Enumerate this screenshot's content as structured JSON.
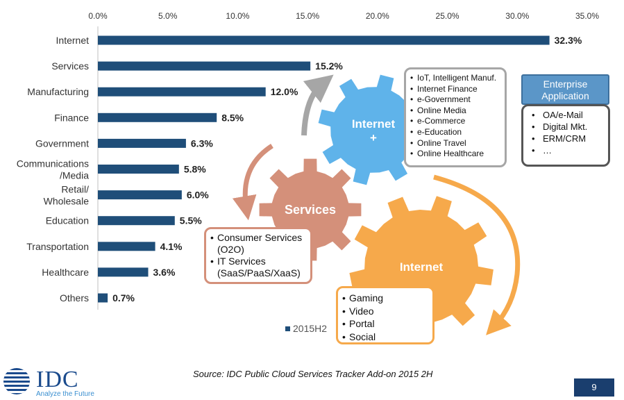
{
  "chart_data": {
    "type": "bar",
    "orientation": "horizontal",
    "categories": [
      "Internet",
      "Services",
      "Manufacturing",
      "Finance",
      "Government",
      "Communications /Media",
      "Retail/ Wholesale",
      "Education",
      "Transportation",
      "Healthcare",
      "Others"
    ],
    "series": [
      {
        "name": "2015H2",
        "values": [
          32.3,
          15.2,
          12.0,
          8.5,
          6.3,
          5.8,
          6.0,
          5.5,
          4.1,
          3.6,
          0.7
        ]
      }
    ],
    "value_labels": [
      "32.3%",
      "15.2%",
      "12.0%",
      "8.5%",
      "6.3%",
      "5.8%",
      "6.0%",
      "5.5%",
      "4.1%",
      "3.6%",
      "0.7%"
    ],
    "xticks": [
      "0.0%",
      "5.0%",
      "10.0%",
      "15.0%",
      "20.0%",
      "25.0%",
      "30.0%",
      "35.0%"
    ],
    "xlim": [
      0,
      35
    ],
    "axis_position": "top",
    "grid": false,
    "legend_position": "bottom-center",
    "bar_color": "#1f4e79"
  },
  "diagram": {
    "gears": [
      {
        "label": "Internet\n+",
        "color": "#5fb3ea"
      },
      {
        "label": "Services",
        "color": "#d4907a"
      },
      {
        "label": "Internet",
        "color": "#f6a94b"
      }
    ],
    "internet_plus_items": [
      "IoT, Intelligent Manuf.",
      "Internet Finance",
      "e-Government",
      "Online Media",
      "e-Commerce",
      "e-Education",
      "Online Travel",
      "Online Healthcare"
    ],
    "services_items": [
      "Consumer Services (O2O)",
      "IT Services (SaaS/PaaS/XaaS)"
    ],
    "internet_items": [
      "Gaming",
      "Video",
      "Portal",
      "Social"
    ],
    "enterprise_title": "Enterprise Application",
    "enterprise_items": [
      "OA/e-Mail",
      "Digital Mkt.",
      "ERM/CRM",
      "…"
    ]
  },
  "footer": {
    "source": "Source: IDC Public Cloud Services Tracker Add-on 2015 2H",
    "page_number": "9",
    "logo_text": "IDC",
    "logo_tagline": "Analyze the Future"
  }
}
